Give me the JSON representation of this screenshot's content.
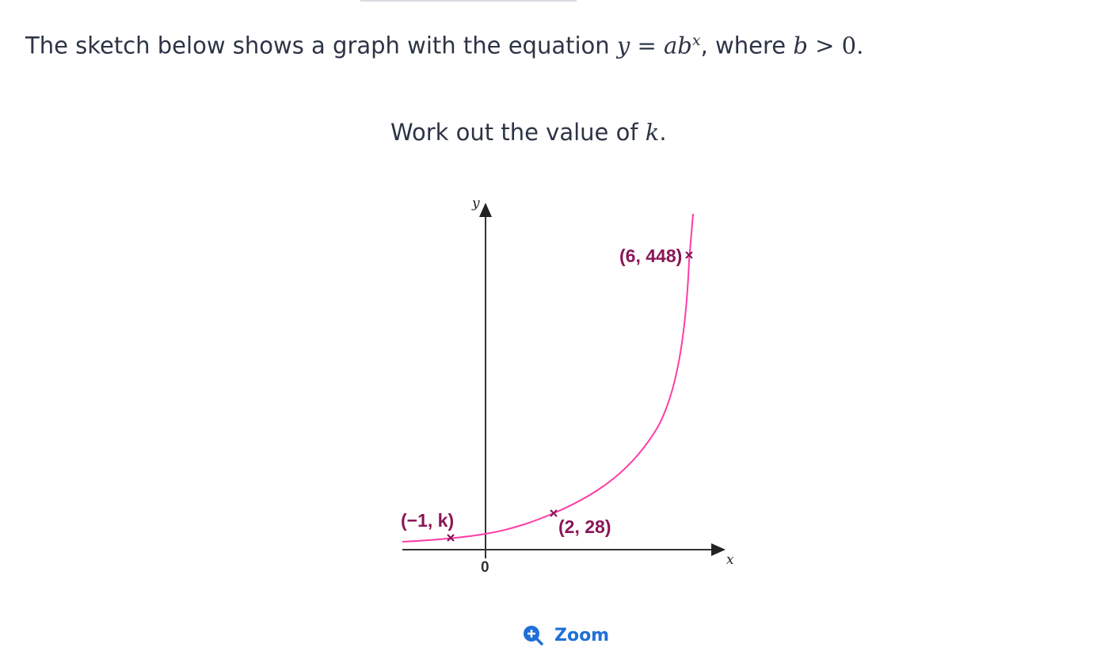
{
  "question": {
    "line1_prefix": "The sketch below shows a graph with the equation ",
    "equation_y": "y",
    "equation_eq": " = ",
    "equation_ab": "ab",
    "equation_exp": "x",
    "line1_mid": ", where ",
    "condition_b": "b",
    "condition_rest": " > 0.",
    "line2_prefix": "Work out the value of ",
    "line2_var": "k",
    "line2_suffix": "."
  },
  "graph": {
    "x_axis_label": "x",
    "y_axis_label": "y",
    "origin_label": "0",
    "curve_color": "#ff3ca6",
    "point_color": "#8a1657",
    "points": [
      {
        "x": -1,
        "y": "k",
        "label": "(−1, k)"
      },
      {
        "x": 2,
        "y": 28,
        "label": "(2, 28)"
      },
      {
        "x": 6,
        "y": 448,
        "label": "(6, 448)"
      }
    ]
  },
  "zoom": {
    "label": "Zoom",
    "icon": "zoom-in-icon",
    "color": "#1f6fd8"
  }
}
